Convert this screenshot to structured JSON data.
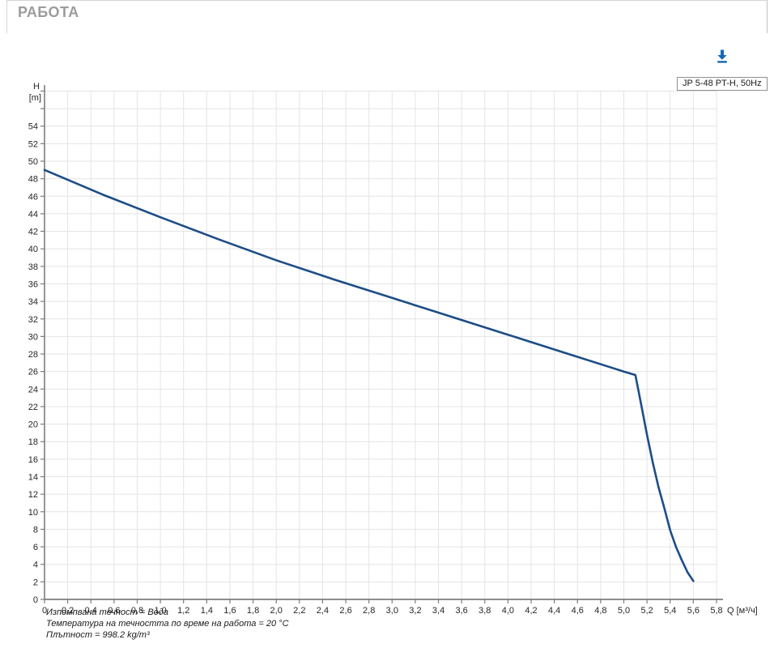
{
  "page": {
    "title": "РАБОТА"
  },
  "toolbar": {
    "download_icon": "download-icon",
    "download_color": "#1268b3"
  },
  "legend": {
    "label": "JP 5-48 PT-H, 50Hz"
  },
  "colors": {
    "curve": "#1d4d87",
    "accent_blue": "#1268b3",
    "title_gray": "#9c9c9c",
    "grid": "#e4e4e4",
    "axis": "#7d7d7d",
    "tick_text": "#262626"
  },
  "chart_data": {
    "type": "line",
    "title": "",
    "xlabel": "Q [м³/ч]",
    "ylabel_line1": "H",
    "ylabel_line2": "[m]",
    "xlim": [
      0,
      5.9
    ],
    "ylim": [
      0,
      58
    ],
    "grid": true,
    "legend_position": "top-right",
    "decimal_separator": ",",
    "series": [
      {
        "name": "JP 5-48 PT-H, 50Hz",
        "color": "#1d4d87",
        "points": [
          [
            0,
            49.0
          ],
          [
            0.5,
            46.2
          ],
          [
            1.0,
            43.6
          ],
          [
            1.5,
            41.1
          ],
          [
            2.0,
            38.7
          ],
          [
            2.5,
            36.5
          ],
          [
            3.0,
            34.4
          ],
          [
            3.5,
            32.3
          ],
          [
            4.0,
            30.2
          ],
          [
            4.5,
            28.1
          ],
          [
            5.0,
            26.0
          ],
          [
            5.1,
            25.6
          ],
          [
            5.15,
            22.2
          ],
          [
            5.2,
            18.8
          ],
          [
            5.25,
            15.6
          ],
          [
            5.3,
            12.8
          ],
          [
            5.35,
            10.4
          ],
          [
            5.4,
            7.9
          ],
          [
            5.45,
            6.0
          ],
          [
            5.5,
            4.5
          ],
          [
            5.55,
            3.1
          ],
          [
            5.6,
            2.1
          ]
        ]
      }
    ],
    "x_tick_values": [
      0,
      0.2,
      0.4,
      0.6,
      0.8,
      1,
      1.2,
      1.4,
      1.6,
      1.8,
      2,
      2.2,
      2.4,
      2.6,
      2.8,
      3,
      3.2,
      3.4,
      3.6,
      3.8,
      4,
      4.2,
      4.4,
      4.6,
      4.8,
      5,
      5.2,
      5.4,
      5.6,
      5.8
    ],
    "x_tick_labels": [
      "0",
      "0,2",
      "0,4",
      "0,6",
      "0,8",
      "1,0",
      "1,2",
      "1,4",
      "1,6",
      "1,8",
      "2,0",
      "2,2",
      "2,4",
      "2,6",
      "2,8",
      "3,0",
      "3,2",
      "3,4",
      "3,6",
      "3,8",
      "4,0",
      "4,2",
      "4,4",
      "4,6",
      "4,8",
      "5,0",
      "5,2",
      "5,4",
      "5,6",
      "5,8"
    ],
    "y_tick_values": [
      0,
      2,
      4,
      6,
      8,
      10,
      12,
      14,
      16,
      18,
      20,
      22,
      24,
      26,
      28,
      30,
      32,
      34,
      36,
      38,
      40,
      42,
      44,
      46,
      48,
      50,
      52,
      54,
      56,
      58
    ],
    "y_tick_labels": [
      "0",
      "2",
      "4",
      "6",
      "8",
      "10",
      "12",
      "14",
      "16",
      "18",
      "20",
      "22",
      "24",
      "26",
      "28",
      "30",
      "32",
      "34",
      "36",
      "38",
      "40",
      "42",
      "44",
      "46",
      "48",
      "50",
      "52",
      "54",
      "",
      ""
    ]
  },
  "footer": {
    "lines": [
      "Изпомпвана течност = Вода",
      "Температура на течността по време на работа = 20 °C",
      "Плътност = 998.2 kg/m³"
    ]
  }
}
